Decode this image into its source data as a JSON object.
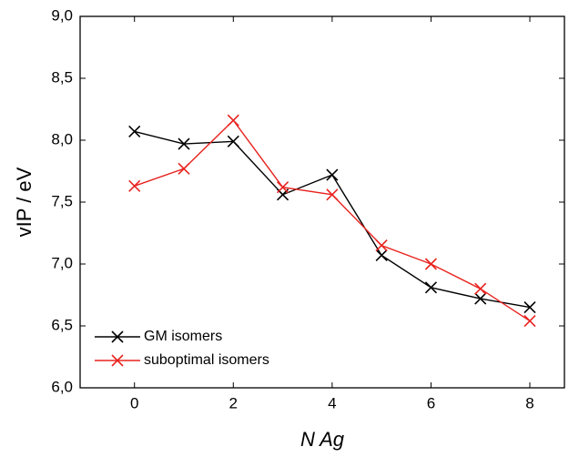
{
  "chart_data": {
    "type": "line",
    "x_label": "N Ag",
    "y_label": "vIP / eV",
    "x": [
      0,
      1,
      2,
      3,
      4,
      5,
      6,
      7,
      8
    ],
    "series": [
      {
        "name": "GM isomers",
        "color": "#000000",
        "values": [
          8.07,
          7.97,
          7.99,
          7.56,
          7.72,
          7.07,
          6.81,
          6.72,
          6.65
        ]
      },
      {
        "name": "suboptimal isomers",
        "color": "#e8231f",
        "values": [
          7.63,
          7.77,
          8.16,
          7.62,
          7.56,
          7.15,
          7.0,
          6.8,
          6.54
        ]
      }
    ],
    "xlim": [
      -1.1,
      8.7
    ],
    "ylim": [
      6.0,
      9.0
    ],
    "xticks": [
      0,
      2,
      4,
      6,
      8
    ],
    "yticks": [
      {
        "value": 6.0,
        "label": "6,0"
      },
      {
        "value": 6.5,
        "label": "6,5"
      },
      {
        "value": 7.0,
        "label": "7,0"
      },
      {
        "value": 7.5,
        "label": "7,5"
      },
      {
        "value": 8.0,
        "label": "8,0"
      },
      {
        "value": 8.5,
        "label": "8,5"
      },
      {
        "value": 9.0,
        "label": "9,0"
      }
    ],
    "legend": "lower left"
  }
}
